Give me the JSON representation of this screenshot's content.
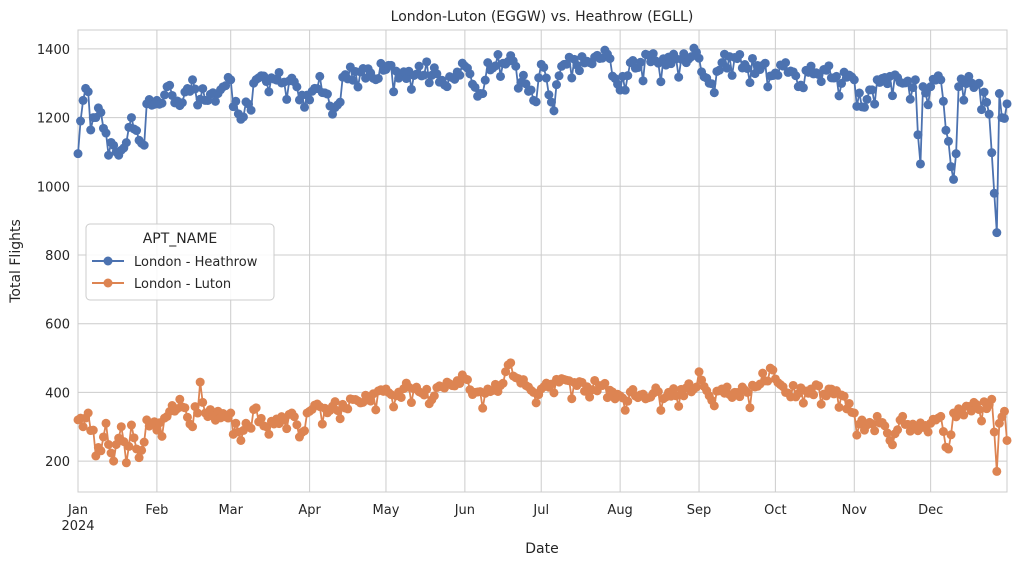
{
  "chart_data": {
    "type": "line",
    "title": "London-Luton (EGGW) vs. Heathrow (EGLL)",
    "xlabel": "Date",
    "ylabel": "Total Flights",
    "xlim": [
      "2024-01-01",
      "2024-12-31"
    ],
    "ylim": [
      110,
      1455
    ],
    "y_ticks": [
      200,
      400,
      600,
      800,
      1000,
      1200,
      1400
    ],
    "x_ticks": [
      {
        "date": "2024-01-01",
        "label": "Jan",
        "sublabel": "2024"
      },
      {
        "date": "2024-02-01",
        "label": "Feb"
      },
      {
        "date": "2024-03-01",
        "label": "Mar"
      },
      {
        "date": "2024-04-01",
        "label": "Apr"
      },
      {
        "date": "2024-05-01",
        "label": "May"
      },
      {
        "date": "2024-06-01",
        "label": "Jun"
      },
      {
        "date": "2024-07-01",
        "label": "Jul"
      },
      {
        "date": "2024-08-01",
        "label": "Aug"
      },
      {
        "date": "2024-09-01",
        "label": "Sep"
      },
      {
        "date": "2024-10-01",
        "label": "Oct"
      },
      {
        "date": "2024-11-01",
        "label": "Nov"
      },
      {
        "date": "2024-12-01",
        "label": "Dec"
      }
    ],
    "grid": true,
    "legend": {
      "title": "APT_NAME",
      "placement": "center-left"
    },
    "series": [
      {
        "name": "London - Heathrow",
        "color": "#4c72b0",
        "anchors": [
          [
            "2024-01-01",
            1095
          ],
          [
            "2024-01-03",
            1250
          ],
          [
            "2024-01-04",
            1285
          ],
          [
            "2024-01-07",
            1200
          ],
          [
            "2024-01-10",
            1215
          ],
          [
            "2024-01-12",
            1155
          ],
          [
            "2024-01-16",
            1100
          ],
          [
            "2024-01-18",
            1105
          ],
          [
            "2024-01-22",
            1200
          ],
          [
            "2024-01-26",
            1125
          ],
          [
            "2024-01-28",
            1240
          ],
          [
            "2024-02-01",
            1250
          ],
          [
            "2024-02-05",
            1290
          ],
          [
            "2024-02-10",
            1235
          ],
          [
            "2024-02-15",
            1310
          ],
          [
            "2024-02-20",
            1250
          ],
          [
            "2024-03-01",
            1310
          ],
          [
            "2024-03-05",
            1195
          ],
          [
            "2024-03-10",
            1300
          ],
          [
            "2024-03-15",
            1305
          ],
          [
            "2024-03-25",
            1315
          ],
          [
            "2024-03-30",
            1230
          ],
          [
            "2024-04-05",
            1320
          ],
          [
            "2024-04-10",
            1210
          ],
          [
            "2024-04-15",
            1325
          ],
          [
            "2024-04-25",
            1330
          ],
          [
            "2024-05-01",
            1340
          ],
          [
            "2024-05-10",
            1335
          ],
          [
            "2024-05-20",
            1345
          ],
          [
            "2024-05-25",
            1290
          ],
          [
            "2024-06-01",
            1350
          ],
          [
            "2024-06-07",
            1270
          ],
          [
            "2024-06-10",
            1360
          ],
          [
            "2024-06-20",
            1365
          ],
          [
            "2024-06-28",
            1250
          ],
          [
            "2024-07-01",
            1355
          ],
          [
            "2024-07-05",
            1245
          ],
          [
            "2024-07-10",
            1355
          ],
          [
            "2024-07-20",
            1360
          ],
          [
            "2024-07-27",
            1385
          ],
          [
            "2024-08-01",
            1280
          ],
          [
            "2024-08-05",
            1360
          ],
          [
            "2024-08-15",
            1365
          ],
          [
            "2024-08-25",
            1370
          ],
          [
            "2024-08-31",
            1390
          ],
          [
            "2024-09-05",
            1300
          ],
          [
            "2024-09-10",
            1360
          ],
          [
            "2024-09-15",
            1375
          ],
          [
            "2024-09-25",
            1340
          ],
          [
            "2024-10-01",
            1330
          ],
          [
            "2024-10-05",
            1360
          ],
          [
            "2024-10-10",
            1290
          ],
          [
            "2024-10-15",
            1350
          ],
          [
            "2024-10-20",
            1340
          ],
          [
            "2024-10-25",
            1320
          ],
          [
            "2024-11-01",
            1310
          ],
          [
            "2024-11-05",
            1230
          ],
          [
            "2024-11-10",
            1310
          ],
          [
            "2024-11-15",
            1320
          ],
          [
            "2024-11-20",
            1300
          ],
          [
            "2024-11-25",
            1310
          ],
          [
            "2024-11-26",
            1150
          ],
          [
            "2024-11-27",
            1065
          ],
          [
            "2024-11-28",
            1290
          ],
          [
            "2024-12-01",
            1290
          ],
          [
            "2024-12-05",
            1310
          ],
          [
            "2024-12-10",
            1020
          ],
          [
            "2024-12-11",
            1095
          ],
          [
            "2024-12-12",
            1290
          ],
          [
            "2024-12-16",
            1320
          ],
          [
            "2024-12-20",
            1300
          ],
          [
            "2024-12-24",
            1210
          ],
          [
            "2024-12-27",
            865
          ],
          [
            "2024-12-28",
            1270
          ],
          [
            "2024-12-29",
            1200
          ],
          [
            "2024-12-31",
            1240
          ]
        ]
      },
      {
        "name": "London - Luton",
        "color": "#dd8452",
        "anchors": [
          [
            "2024-01-01",
            320
          ],
          [
            "2024-01-03",
            300
          ],
          [
            "2024-01-05",
            340
          ],
          [
            "2024-01-07",
            290
          ],
          [
            "2024-01-08",
            215
          ],
          [
            "2024-01-10",
            230
          ],
          [
            "2024-01-12",
            310
          ],
          [
            "2024-01-15",
            200
          ],
          [
            "2024-01-18",
            300
          ],
          [
            "2024-01-20",
            195
          ],
          [
            "2024-01-22",
            305
          ],
          [
            "2024-01-25",
            210
          ],
          [
            "2024-01-28",
            320
          ],
          [
            "2024-02-01",
            290
          ],
          [
            "2024-02-05",
            330
          ],
          [
            "2024-02-10",
            380
          ],
          [
            "2024-02-15",
            300
          ],
          [
            "2024-02-18",
            430
          ],
          [
            "2024-02-20",
            340
          ],
          [
            "2024-03-01",
            340
          ],
          [
            "2024-03-05",
            260
          ],
          [
            "2024-03-10",
            350
          ],
          [
            "2024-03-15",
            300
          ],
          [
            "2024-03-25",
            340
          ],
          [
            "2024-03-28",
            270
          ],
          [
            "2024-04-01",
            345
          ],
          [
            "2024-04-10",
            360
          ],
          [
            "2024-04-20",
            375
          ],
          [
            "2024-05-01",
            410
          ],
          [
            "2024-05-05",
            390
          ],
          [
            "2024-05-10",
            415
          ],
          [
            "2024-05-20",
            390
          ],
          [
            "2024-05-25",
            430
          ],
          [
            "2024-06-01",
            440
          ],
          [
            "2024-06-05",
            400
          ],
          [
            "2024-06-15",
            420
          ],
          [
            "2024-06-18",
            480
          ],
          [
            "2024-06-22",
            440
          ],
          [
            "2024-06-28",
            400
          ],
          [
            "2024-07-01",
            410
          ],
          [
            "2024-07-08",
            430
          ],
          [
            "2024-07-15",
            420
          ],
          [
            "2024-07-25",
            420
          ],
          [
            "2024-08-01",
            390
          ],
          [
            "2024-08-10",
            395
          ],
          [
            "2024-08-20",
            400
          ],
          [
            "2024-08-30",
            410
          ],
          [
            "2024-09-01",
            460
          ],
          [
            "2024-09-05",
            390
          ],
          [
            "2024-09-10",
            410
          ],
          [
            "2024-09-20",
            400
          ],
          [
            "2024-09-30",
            465
          ],
          [
            "2024-10-05",
            400
          ],
          [
            "2024-10-15",
            410
          ],
          [
            "2024-10-25",
            405
          ],
          [
            "2024-11-01",
            340
          ],
          [
            "2024-11-05",
            290
          ],
          [
            "2024-11-10",
            330
          ],
          [
            "2024-11-15",
            260
          ],
          [
            "2024-11-20",
            330
          ],
          [
            "2024-11-25",
            300
          ],
          [
            "2024-12-01",
            310
          ],
          [
            "2024-12-05",
            330
          ],
          [
            "2024-12-08",
            235
          ],
          [
            "2024-12-10",
            340
          ],
          [
            "2024-12-15",
            360
          ],
          [
            "2024-12-20",
            350
          ],
          [
            "2024-12-25",
            380
          ],
          [
            "2024-12-27",
            170
          ],
          [
            "2024-12-28",
            310
          ],
          [
            "2024-12-30",
            345
          ],
          [
            "2024-12-31",
            260
          ]
        ]
      }
    ]
  }
}
